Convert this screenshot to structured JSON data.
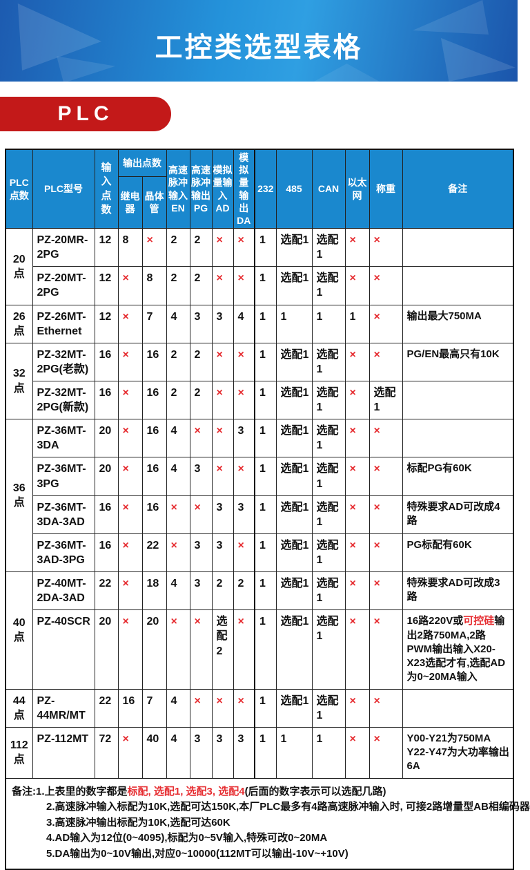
{
  "banner": {
    "title": "工控类选型表格"
  },
  "badge": {
    "label": "PLC"
  },
  "colors": {
    "header_blue": "#1a88ce",
    "banner_blue_dark": "#1d5bb0",
    "banner_blue_light": "#2f9fe2",
    "badge_red": "#c31919",
    "mark_red": "#e62e32"
  },
  "table": {
    "cross_mark": "×",
    "headers": {
      "points": "PLC点数",
      "model": "PLC型号",
      "input": "输入点数",
      "output_group": "输出点数",
      "relay": "继电器",
      "transistor": "晶体管",
      "en": "高速脉冲输入EN",
      "pg": "高速脉冲输出PG",
      "ad": "模拟量输入AD",
      "da": "模拟量输出DA",
      "c232": "232",
      "c485": "485",
      "can": "CAN",
      "eth": "以太网",
      "weigh": "称重",
      "note": "备注"
    },
    "groups": [
      {
        "points": "20点",
        "rows": [
          {
            "model": "PZ-20MR-2PG",
            "values": [
              "12",
              "8",
              "×",
              "2",
              "2",
              "×",
              "×",
              "1",
              "选配1",
              "选配1",
              "×",
              "×"
            ],
            "note": []
          },
          {
            "model": "PZ-20MT-2PG",
            "values": [
              "12",
              "×",
              "8",
              "2",
              "2",
              "×",
              "×",
              "1",
              "选配1",
              "选配1",
              "×",
              "×"
            ],
            "note": []
          }
        ]
      },
      {
        "points": "26点",
        "rows": [
          {
            "model": "PZ-26MT-Ethernet",
            "values": [
              "12",
              "×",
              "7",
              "4",
              "3",
              "3",
              "4",
              "1",
              "1",
              "1",
              "1",
              "×"
            ],
            "note": [
              {
                "text": "输出最大750MA"
              }
            ]
          }
        ]
      },
      {
        "points": "32点",
        "rows": [
          {
            "model": "PZ-32MT-2PG(老款)",
            "values": [
              "16",
              "×",
              "16",
              "2",
              "2",
              "×",
              "×",
              "1",
              "选配1",
              "选配1",
              "×",
              "×"
            ],
            "note": [
              {
                "text": "PG/EN最高只有10K"
              }
            ]
          },
          {
            "model": "PZ-32MT-2PG(新款)",
            "values": [
              "16",
              "×",
              "16",
              "2",
              "2",
              "×",
              "×",
              "1",
              "选配1",
              "选配1",
              "×",
              "选配1"
            ],
            "note": []
          }
        ]
      },
      {
        "points": "36点",
        "rows": [
          {
            "model": "PZ-36MT-3DA",
            "values": [
              "20",
              "×",
              "16",
              "4",
              "×",
              "×",
              "3",
              "1",
              "选配1",
              "选配1",
              "×",
              "×"
            ],
            "note": []
          },
          {
            "model": "PZ-36MT-3PG",
            "values": [
              "20",
              "×",
              "16",
              "4",
              "3",
              "×",
              "×",
              "1",
              "选配1",
              "选配1",
              "×",
              "×"
            ],
            "note": [
              {
                "text": "标配PG有60K"
              }
            ]
          },
          {
            "model": "PZ-36MT-3DA-3AD",
            "values": [
              "16",
              "×",
              "16",
              "×",
              "×",
              "3",
              "3",
              "1",
              "选配1",
              "选配1",
              "×",
              "×"
            ],
            "note": [
              {
                "text": "特殊要求AD可改成4路"
              }
            ]
          },
          {
            "model": "PZ-36MT-3AD-3PG",
            "values": [
              "16",
              "×",
              "22",
              "×",
              "3",
              "3",
              "×",
              "1",
              "选配1",
              "选配1",
              "×",
              "×"
            ],
            "note": [
              {
                "text": "PG标配有60K"
              }
            ]
          }
        ]
      },
      {
        "points": "40点",
        "rows": [
          {
            "model": "PZ-40MT-2DA-3AD",
            "values": [
              "22",
              "×",
              "18",
              "4",
              "3",
              "2",
              "2",
              "1",
              "选配1",
              "选配1",
              "×",
              "×"
            ],
            "note": [
              {
                "text": "特殊要求AD可改成3路"
              }
            ]
          },
          {
            "model": "PZ-40SCR",
            "values": [
              "20",
              "×",
              "20",
              "×",
              "×",
              "选配2",
              "×",
              "1",
              "选配1",
              "选配1",
              "×",
              "×"
            ],
            "note": [
              {
                "text": "16路220V或"
              },
              {
                "text": "可控硅",
                "red": true
              },
              {
                "text": "输出2路750MA,2路PWM输出输入X20-X23选配才有,选配AD为0~20MA输入"
              }
            ]
          }
        ]
      },
      {
        "points": "44点",
        "rows": [
          {
            "model": "PZ-44MR/MT",
            "values": [
              "22",
              "16",
              "7",
              "4",
              "×",
              "×",
              "×",
              "1",
              "选配1",
              "选配1",
              "×",
              "×"
            ],
            "note": []
          }
        ]
      },
      {
        "points": "112点",
        "rows": [
          {
            "model": "PZ-112MT",
            "values": [
              "72",
              "×",
              "40",
              "4",
              "3",
              "3",
              "3",
              "1",
              "1",
              "1",
              "×",
              "×"
            ],
            "note": [
              {
                "text": "Y00-Y21为750MA",
                "br": true
              },
              {
                "text": "Y22-Y47为大功率输出",
                "br": true
              },
              {
                "text": "6A"
              }
            ]
          }
        ]
      }
    ]
  },
  "notes": {
    "lines": [
      {
        "parts": [
          {
            "text": "备注:1.上表里的数字都是"
          },
          {
            "text": "标配, 选配1, 选配3, 选配4",
            "red": true
          },
          {
            "text": "(后面的数字表示可以选配几路)"
          }
        ]
      },
      {
        "parts": [
          {
            "text": "2.高速脉冲输入标配为10K,选配可达150K,本厂PLC最多有4路高速脉冲输入时, 可接2路增量型AB相编码器"
          }
        ]
      },
      {
        "parts": [
          {
            "text": "3.高速脉冲输出标配为10K,选配可达60K"
          }
        ]
      },
      {
        "parts": [
          {
            "text": "4.AD输入为12位(0~4095),标配为0~5V输入,特殊可改0~20MA"
          }
        ]
      },
      {
        "parts": [
          {
            "text": "5.DA输出为0~10V输出,对应0~10000(112MT可以输出-10V~+10V)"
          }
        ]
      }
    ]
  }
}
